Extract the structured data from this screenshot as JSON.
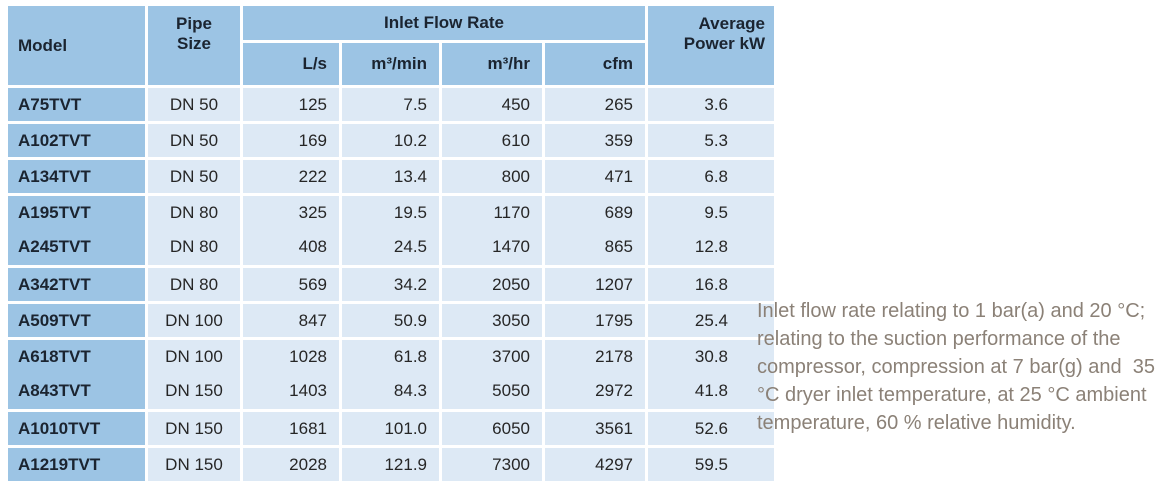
{
  "colors": {
    "header_blue": "#9cc4e4",
    "row_blue": "#dde9f5",
    "header_text": "#1b2430",
    "body_text": "#262626",
    "note_text": "#8b8177"
  },
  "table": {
    "headers": {
      "model": "Model",
      "pipe_size": "Pipe\nSize",
      "inlet_flow_rate": "Inlet Flow Rate",
      "average_power": "Average\nPower kW",
      "units": [
        "L/s",
        "m³/min",
        "m³/hr",
        "cfm"
      ]
    },
    "rows": [
      {
        "model": "A75TVT",
        "pipe_size": "DN 50",
        "l_s": "125",
        "m3_min": "7.5",
        "m3_hr": "450",
        "cfm": "265",
        "avg_power_kw": "3.6"
      },
      {
        "model": "A102TVT",
        "pipe_size": "DN 50",
        "l_s": "169",
        "m3_min": "10.2",
        "m3_hr": "610",
        "cfm": "359",
        "avg_power_kw": "5.3"
      },
      {
        "model": "A134TVT",
        "pipe_size": "DN 50",
        "l_s": "222",
        "m3_min": "13.4",
        "m3_hr": "800",
        "cfm": "471",
        "avg_power_kw": "6.8"
      },
      {
        "model": "A195TVT",
        "pipe_size": "DN 80",
        "l_s": "325",
        "m3_min": "19.5",
        "m3_hr": "1170",
        "cfm": "689",
        "avg_power_kw": "9.5"
      },
      {
        "model": "A245TVT",
        "pipe_size": "DN 80",
        "l_s": "408",
        "m3_min": "24.5",
        "m3_hr": "1470",
        "cfm": "865",
        "avg_power_kw": "12.8"
      },
      {
        "model": "A342TVT",
        "pipe_size": "DN 80",
        "l_s": "569",
        "m3_min": "34.2",
        "m3_hr": "2050",
        "cfm": "1207",
        "avg_power_kw": "16.8"
      },
      {
        "model": "A509TVT",
        "pipe_size": "DN 100",
        "l_s": "847",
        "m3_min": "50.9",
        "m3_hr": "3050",
        "cfm": "1795",
        "avg_power_kw": "25.4"
      },
      {
        "model": "A618TVT",
        "pipe_size": "DN 100",
        "l_s": "1028",
        "m3_min": "61.8",
        "m3_hr": "3700",
        "cfm": "2178",
        "avg_power_kw": "30.8"
      },
      {
        "model": "A843TVT",
        "pipe_size": "DN 150",
        "l_s": "1403",
        "m3_min": "84.3",
        "m3_hr": "5050",
        "cfm": "2972",
        "avg_power_kw": "41.8"
      },
      {
        "model": "A1010TVT",
        "pipe_size": "DN 150",
        "l_s": "1681",
        "m3_min": "101.0",
        "m3_hr": "6050",
        "cfm": "3561",
        "avg_power_kw": "52.6"
      },
      {
        "model": "A1219TVT",
        "pipe_size": "DN 150",
        "l_s": "2028",
        "m3_min": "121.9",
        "m3_hr": "7300",
        "cfm": "4297",
        "avg_power_kw": "59.5"
      }
    ]
  },
  "note": {
    "lines": [
      "Inlet flow rate relating to 1 bar(a) and 20 °C;",
      "relating to the suction performance of the",
      "compressor, compression at 7 bar(g) and  35",
      "°C dryer inlet temperature, at 25 °C ambient",
      "temperature, 60 % relative humidity."
    ]
  }
}
